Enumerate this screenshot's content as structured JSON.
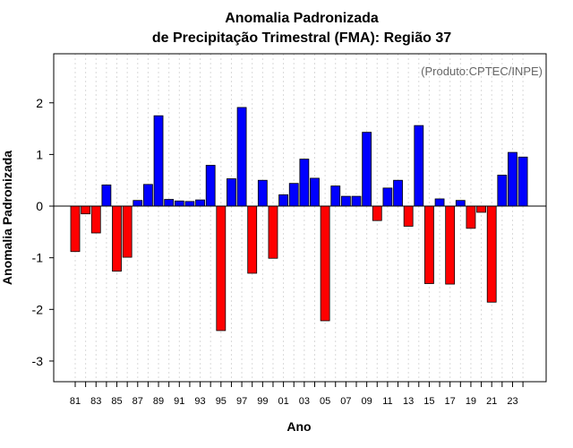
{
  "chart_data": {
    "type": "bar",
    "title_line1": "Anomalia Padronizada",
    "title_line2": "de Precipitação Trimestral (FMA): Região 37",
    "credit": "(Produto:CPTEC/INPE)",
    "xlabel": "Ano",
    "ylabel": "Anomalia Padronizada",
    "ylim": [
      -3.4,
      2.95
    ],
    "yticks": [
      -3,
      -2,
      -1,
      0,
      1,
      2
    ],
    "grid": "vertical-dotted",
    "colors": {
      "positive": "#0000ff",
      "negative": "#ff0000"
    },
    "categories": [
      "81",
      "82",
      "83",
      "84",
      "85",
      "86",
      "87",
      "88",
      "89",
      "90",
      "91",
      "92",
      "93",
      "94",
      "95",
      "96",
      "97",
      "98",
      "99",
      "00",
      "01",
      "02",
      "03",
      "04",
      "05",
      "06",
      "07",
      "08",
      "09",
      "10",
      "11",
      "12",
      "13",
      "14",
      "15",
      "16",
      "17",
      "18",
      "19",
      "20",
      "21",
      "22",
      "23",
      "24"
    ],
    "tick_labels": [
      "81",
      "83",
      "85",
      "87",
      "89",
      "91",
      "93",
      "95",
      "97",
      "99",
      "01",
      "03",
      "05",
      "07",
      "09",
      "11",
      "13",
      "15",
      "17",
      "19",
      "21",
      "23"
    ],
    "values": [
      -0.88,
      -0.15,
      -0.52,
      0.41,
      -1.26,
      -0.99,
      0.11,
      0.42,
      1.75,
      0.13,
      0.1,
      0.09,
      0.12,
      0.79,
      -2.41,
      0.53,
      1.91,
      -1.3,
      0.5,
      -1.01,
      0.22,
      0.44,
      0.91,
      0.54,
      -2.22,
      0.39,
      0.19,
      0.19,
      1.43,
      -0.28,
      0.35,
      0.5,
      -0.39,
      1.56,
      -1.5,
      0.14,
      -1.51,
      0.11,
      -0.43,
      -0.12,
      -1.86,
      0.6,
      1.04,
      0.95
    ]
  }
}
